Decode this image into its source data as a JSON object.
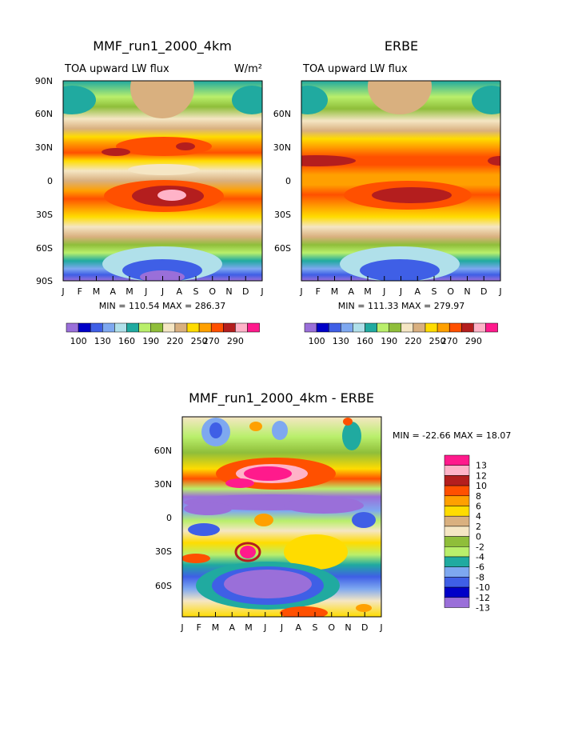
{
  "chart_data": [
    {
      "type": "heatmap",
      "name": "panel-model",
      "title": "MMF_run1_2000_4km",
      "subtitle_left": "TOA upward LW flux",
      "units": "W/m²",
      "xlabel": "",
      "ylabel": "",
      "x_ticks": [
        "J",
        "F",
        "M",
        "A",
        "M",
        "J",
        "J",
        "A",
        "S",
        "O",
        "N",
        "D",
        "J"
      ],
      "y_ticks": [
        "90N",
        "60N",
        "30N",
        "0",
        "30S",
        "60S",
        "90S"
      ],
      "ylim": [
        -90,
        90
      ],
      "stats": "MIN = 110.54  MAX = 286.37",
      "legend_labels": [
        "100",
        "130",
        "160",
        "190",
        "220",
        "250",
        "270",
        "290"
      ]
    },
    {
      "type": "heatmap",
      "name": "panel-obs",
      "title": "ERBE",
      "subtitle_left": "TOA upward LW flux",
      "xlabel": "",
      "ylabel": "",
      "x_ticks": [
        "J",
        "F",
        "M",
        "A",
        "M",
        "J",
        "J",
        "A",
        "S",
        "O",
        "N",
        "D",
        "J"
      ],
      "y_ticks": [
        "60N",
        "30N",
        "0",
        "30S",
        "60S"
      ],
      "ylim": [
        -90,
        90
      ],
      "stats": "MIN = 111.33  MAX = 279.97",
      "legend_labels": [
        "100",
        "130",
        "160",
        "190",
        "220",
        "250",
        "270",
        "290"
      ]
    },
    {
      "type": "heatmap",
      "name": "panel-diff",
      "title": "MMF_run1_2000_4km - ERBE",
      "xlabel": "",
      "ylabel": "",
      "x_ticks": [
        "J",
        "F",
        "M",
        "A",
        "M",
        "J",
        "J",
        "A",
        "S",
        "O",
        "N",
        "D",
        "J"
      ],
      "y_ticks": [
        "60N",
        "30N",
        "0",
        "30S",
        "60S"
      ],
      "ylim": [
        -90,
        90
      ],
      "stats": "MIN = -22.66  MAX =  18.07",
      "legend_labels": [
        "13",
        "12",
        "10",
        "8",
        "6",
        "4",
        "2",
        "0",
        "-2",
        "-4",
        "-6",
        "-8",
        "-10",
        "-12",
        "-13"
      ]
    }
  ],
  "palettes": {
    "flux": [
      "#9a6fd9",
      "#0000c8",
      "#3f5fe6",
      "#7ea8f0",
      "#b0e0ea",
      "#20aaa0",
      "#b9ef6b",
      "#8fbe3a",
      "#f5e6c4",
      "#d9b07f",
      "#ffdc00",
      "#ffa000",
      "#ff5000",
      "#b41e1e",
      "#ffb3c8",
      "#ff1a8c"
    ],
    "diff": [
      "#ff1a8c",
      "#ffb3c8",
      "#b41e1e",
      "#ff5000",
      "#ffa000",
      "#ffdc00",
      "#d9b07f",
      "#f5e6c4",
      "#8fbe3a",
      "#b9ef6b",
      "#20aaa0",
      "#7ea8f0",
      "#3f5fe6",
      "#0000c8",
      "#9a6fd9"
    ]
  }
}
